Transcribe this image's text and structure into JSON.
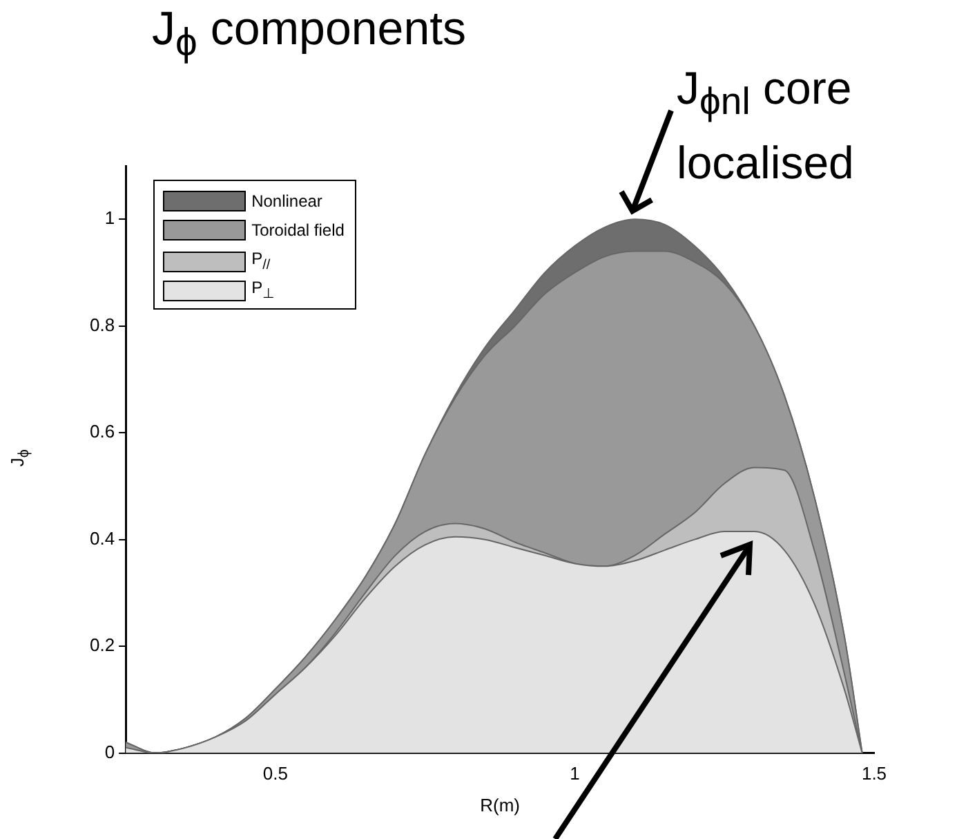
{
  "chart_data": {
    "type": "area",
    "title": "J$_{ϕ}$ components",
    "xlabel": "R(m)",
    "ylabel": "J$_{ϕ}$",
    "stacked": true,
    "legend": "top left",
    "grid": false,
    "x": [
      0.25,
      0.3,
      0.35,
      0.4,
      0.45,
      0.5,
      0.55,
      0.6,
      0.65,
      0.7,
      0.75,
      0.8,
      0.85,
      0.9,
      0.95,
      1.0,
      1.05,
      1.1,
      1.15,
      1.2,
      1.25,
      1.3,
      1.35,
      1.4,
      1.45,
      1.48
    ],
    "xlim": [
      0.25,
      1.5
    ],
    "xticks": [
      0.5,
      1,
      1.5
    ],
    "ylim": [
      0,
      1.1
    ],
    "yticks": [
      0,
      0.2,
      0.4,
      0.6,
      0.8,
      1
    ],
    "series": [
      {
        "name": "P$_{⊥}$",
        "color": "#e3e3e3",
        "values": [
          0.01,
          0,
          0.01,
          0.03,
          0.06,
          0.11,
          0.16,
          0.22,
          0.29,
          0.35,
          0.39,
          0.405,
          0.4,
          0.385,
          0.37,
          0.355,
          0.35,
          0.36,
          0.38,
          0.4,
          0.415,
          0.415,
          0.38,
          0.28,
          0.12,
          0
        ]
      },
      {
        "name": "P$_{//}$",
        "color": "#bebebe",
        "values": [
          0,
          0,
          0,
          0,
          0,
          0,
          0,
          0.005,
          0.01,
          0.02,
          0.025,
          0.025,
          0.02,
          0.01,
          0.005,
          0,
          0,
          0.01,
          0.03,
          0.05,
          0.09,
          0.12,
          0.15,
          0.1,
          0.03,
          0
        ]
      },
      {
        "name": "Toroidal field",
        "color": "#999999",
        "values": [
          0.01,
          0,
          0,
          0,
          0.005,
          0.01,
          0.02,
          0.025,
          0.03,
          0.06,
          0.145,
          0.235,
          0.325,
          0.405,
          0.485,
          0.545,
          0.58,
          0.57,
          0.53,
          0.47,
          0.375,
          0.265,
          0.14,
          0.1,
          0.07,
          0
        ]
      },
      {
        "name": "Nonlinear",
        "color": "#6e6e6e",
        "values": [
          0,
          0,
          0,
          0,
          0,
          0,
          0,
          0,
          0,
          0,
          0,
          0.005,
          0.015,
          0.03,
          0.04,
          0.05,
          0.055,
          0.06,
          0.05,
          0.03,
          0.01,
          0,
          0,
          0,
          0,
          0
        ]
      }
    ],
    "annotations": [
      {
        "text": "J$_{ϕnl}$ core localised",
        "x": 1.1,
        "y": 1.0
      }
    ]
  }
}
